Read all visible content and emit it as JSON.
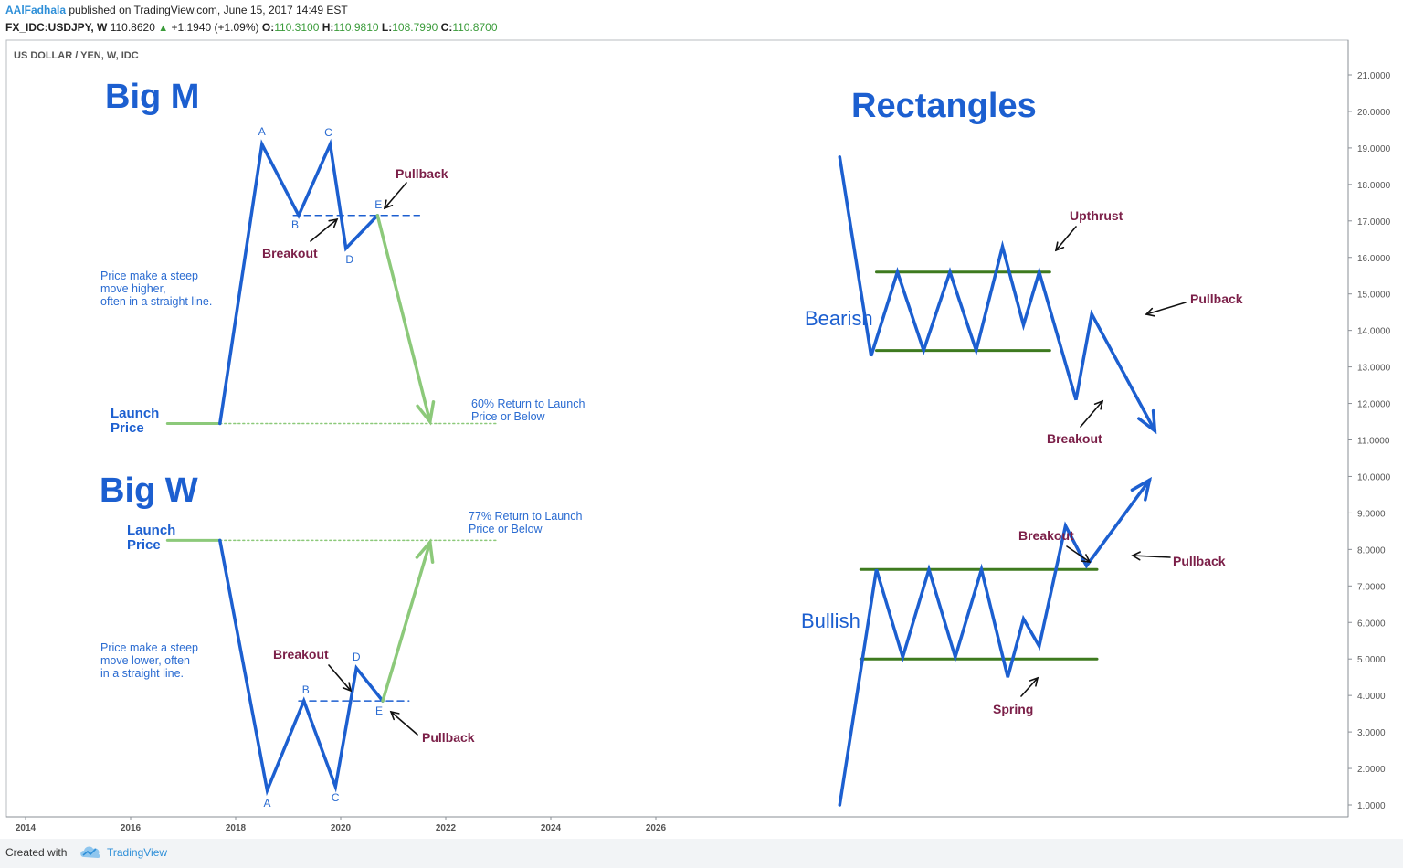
{
  "header": {
    "author": "AAlFadhala",
    "published": "published on TradingView.com, June 15, 2017 14:49 EST",
    "symbol": "FX_IDC:USDJPY, W",
    "last": "110.8620",
    "change": "+1.1940 (+1.09%)",
    "o_label": "O:",
    "o_value": "110.3100",
    "h_label": "H:",
    "h_value": "110.9810",
    "l_label": "L:",
    "l_value": "108.7990",
    "c_label": "C:",
    "c_value": "110.8700",
    "up_icon": "triangle-up-icon"
  },
  "footer": {
    "created": "Created with",
    "brand": "TradingView",
    "logo_icon": "cloud-logo-icon"
  },
  "colors": {
    "blue": "#1c5fd0",
    "green_line": "#3e7a1f",
    "light_green": "#8cc97a",
    "maroon": "#7b1f48",
    "label_blue": "#2a6bd1"
  },
  "chart_data": {
    "type": "line",
    "title": "US DOLLAR / YEN, W, IDC",
    "y_axis": {
      "range": [
        0.4,
        21.5
      ],
      "ticks": [
        "1.0000",
        "2.0000",
        "3.0000",
        "4.0000",
        "5.0000",
        "6.0000",
        "7.0000",
        "8.0000",
        "9.0000",
        "10.0000",
        "11.0000",
        "12.0000",
        "13.0000",
        "14.0000",
        "15.0000",
        "16.0000",
        "17.0000",
        "18.0000",
        "19.0000",
        "20.0000",
        "21.0000"
      ]
    },
    "x_axis": {
      "range": [
        2013.6,
        2033.0
      ],
      "ticks": [
        "2014",
        "2016",
        "2018",
        "2020",
        "2022",
        "2024",
        "2026"
      ]
    },
    "big_m": {
      "title": "Big M",
      "launch_label_1": "Launch",
      "launch_label_2": "Price",
      "desc_1": "Price make a steep",
      "desc_2": "move higher,",
      "desc_3": "often in a straight line.",
      "target_1": "60% Return to Launch",
      "target_2": "Price or Below",
      "breakout": "Breakout",
      "pullback": "Pullback",
      "launch_segment": [
        [
          2016.7,
          11.45
        ],
        [
          2017.7,
          11.45
        ]
      ],
      "path": [
        [
          2017.7,
          11.45
        ],
        [
          2018.5,
          19.1
        ],
        [
          2019.2,
          17.15
        ],
        [
          2019.8,
          19.1
        ],
        [
          2020.1,
          16.25
        ],
        [
          2020.7,
          17.15
        ]
      ],
      "decline": [
        [
          2020.7,
          17.15
        ],
        [
          2021.7,
          11.5
        ]
      ],
      "neckline": [
        [
          2019.1,
          17.15
        ],
        [
          2021.5,
          17.15
        ]
      ],
      "target_line": [
        [
          2017.7,
          11.45
        ],
        [
          2023.0,
          11.45
        ]
      ],
      "points": [
        {
          "label": "A",
          "x": 2018.5,
          "y": 19.1
        },
        {
          "label": "B",
          "x": 2019.2,
          "y": 17.15
        },
        {
          "label": "C",
          "x": 2019.8,
          "y": 19.1
        },
        {
          "label": "D",
          "x": 2020.1,
          "y": 16.25
        },
        {
          "label": "E",
          "x": 2020.7,
          "y": 17.15
        }
      ]
    },
    "big_w": {
      "title": "Big W",
      "launch_label_1": "Launch",
      "launch_label_2": "Price",
      "desc_1": "Price make a steep",
      "desc_2": "move lower, often",
      "desc_3": "in a straight line.",
      "target_1": "77% Return to Launch",
      "target_2": "Price or Below",
      "breakout": "Breakout",
      "pullback": "Pullback",
      "launch_segment": [
        [
          2016.7,
          8.25
        ],
        [
          2017.7,
          8.25
        ]
      ],
      "path": [
        [
          2017.7,
          8.25
        ],
        [
          2018.6,
          1.4
        ],
        [
          2019.3,
          3.85
        ],
        [
          2019.9,
          1.5
        ],
        [
          2020.3,
          4.75
        ],
        [
          2020.8,
          3.85
        ]
      ],
      "rally": [
        [
          2020.8,
          3.85
        ],
        [
          2021.7,
          8.2
        ]
      ],
      "neckline": [
        [
          2019.2,
          3.85
        ],
        [
          2021.3,
          3.85
        ]
      ],
      "target_line": [
        [
          2017.7,
          8.25
        ],
        [
          2023.0,
          8.25
        ]
      ],
      "points": [
        {
          "label": "A",
          "x": 2018.6,
          "y": 1.4
        },
        {
          "label": "B",
          "x": 2019.3,
          "y": 3.85
        },
        {
          "label": "C",
          "x": 2019.9,
          "y": 1.5
        },
        {
          "label": "D",
          "x": 2020.3,
          "y": 4.75
        },
        {
          "label": "E",
          "x": 2020.8,
          "y": 3.85
        }
      ]
    },
    "rectangles": {
      "title": "Rectangles",
      "bearish": {
        "label": "Bearish",
        "upthrust": "Upthrust",
        "breakout": "Breakout",
        "pullback": "Pullback",
        "top_line": [
          [
            2030.2,
            15.6
          ],
          [
            2033.5,
            15.6
          ]
        ],
        "bottom_line": [
          [
            2030.2,
            13.45
          ],
          [
            2033.5,
            13.45
          ]
        ],
        "path": [
          [
            2029.5,
            18.75
          ],
          [
            2030.1,
            13.3
          ],
          [
            2030.6,
            15.6
          ],
          [
            2031.1,
            13.45
          ],
          [
            2031.6,
            15.6
          ],
          [
            2032.1,
            13.45
          ],
          [
            2032.6,
            16.3
          ],
          [
            2033.0,
            14.15
          ],
          [
            2033.3,
            15.6
          ],
          [
            2034.0,
            12.1
          ],
          [
            2034.3,
            14.45
          ],
          [
            2035.5,
            11.25
          ]
        ]
      },
      "bullish": {
        "label": "Bullish",
        "breakout": "Breakout",
        "spring": "Spring",
        "pullback": "Pullback",
        "top_line": [
          [
            2029.9,
            7.45
          ],
          [
            2034.4,
            7.45
          ]
        ],
        "bottom_line": [
          [
            2029.9,
            5.0
          ],
          [
            2034.4,
            5.0
          ]
        ],
        "path": [
          [
            2029.5,
            1.0
          ],
          [
            2030.2,
            7.45
          ],
          [
            2030.7,
            5.05
          ],
          [
            2031.2,
            7.45
          ],
          [
            2031.7,
            5.05
          ],
          [
            2032.2,
            7.45
          ],
          [
            2032.7,
            4.5
          ],
          [
            2033.0,
            6.1
          ],
          [
            2033.3,
            5.35
          ],
          [
            2033.8,
            8.65
          ],
          [
            2034.2,
            7.55
          ],
          [
            2035.4,
            9.9
          ]
        ]
      }
    }
  }
}
